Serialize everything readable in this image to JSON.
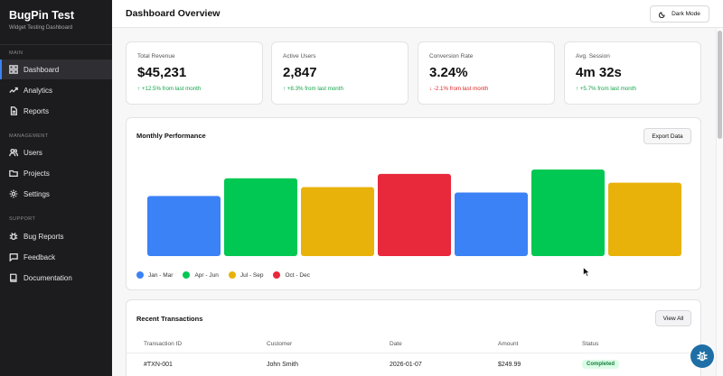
{
  "brand": {
    "title": "BugPin Test",
    "subtitle": "Widget Testing Dashboard"
  },
  "sidebar": {
    "sections": [
      {
        "label": "MAIN",
        "items": [
          {
            "label": "Dashboard",
            "icon": "grid-icon",
            "active": true
          },
          {
            "label": "Analytics",
            "icon": "trend-icon"
          },
          {
            "label": "Reports",
            "icon": "document-icon"
          }
        ]
      },
      {
        "label": "MANAGEMENT",
        "items": [
          {
            "label": "Users",
            "icon": "users-icon"
          },
          {
            "label": "Projects",
            "icon": "folder-icon"
          },
          {
            "label": "Settings",
            "icon": "gear-icon"
          }
        ]
      },
      {
        "label": "SUPPORT",
        "items": [
          {
            "label": "Bug Reports",
            "icon": "bug-icon"
          },
          {
            "label": "Feedback",
            "icon": "chat-icon"
          },
          {
            "label": "Documentation",
            "icon": "book-icon"
          }
        ]
      }
    ]
  },
  "header": {
    "title": "Dashboard Overview",
    "dark_mode_label": "Dark Mode"
  },
  "stats": [
    {
      "label": "Total Revenue",
      "value": "$45,231",
      "change": "↑ +12.5% from last month",
      "trend": "up"
    },
    {
      "label": "Active Users",
      "value": "2,847",
      "change": "↑ +8.3% from last month",
      "trend": "up"
    },
    {
      "label": "Conversion Rate",
      "value": "3.24%",
      "change": "↓ -2.1% from last month",
      "trend": "down"
    },
    {
      "label": "Avg. Session",
      "value": "4m 32s",
      "change": "↑ +5.7% from last month",
      "trend": "up"
    }
  ],
  "performance": {
    "title": "Monthly Performance",
    "export_label": "Export Data"
  },
  "chart_data": {
    "type": "bar",
    "title": "Monthly Performance",
    "values": [
      68,
      88,
      78,
      93,
      72,
      98,
      83
    ],
    "colors": [
      "#3b82f6",
      "#00c853",
      "#e9b20a",
      "#e8283b",
      "#3b82f6",
      "#00c853",
      "#e9b20a"
    ],
    "ylim": [
      0,
      100
    ],
    "legend": [
      {
        "name": "Jan - Mar",
        "color": "#3b82f6"
      },
      {
        "name": "Apr - Jun",
        "color": "#00c853"
      },
      {
        "name": "Jul - Sep",
        "color": "#e9b20a"
      },
      {
        "name": "Oct - Dec",
        "color": "#e8283b"
      }
    ]
  },
  "transactions": {
    "title": "Recent Transactions",
    "view_all_label": "View All",
    "columns": [
      "Transaction ID",
      "Customer",
      "Date",
      "Amount",
      "Status"
    ],
    "rows": [
      {
        "id": "#TXN-001",
        "customer": "John Smith",
        "date": "2026-01-07",
        "amount": "$249.99",
        "status": "Completed"
      }
    ]
  }
}
